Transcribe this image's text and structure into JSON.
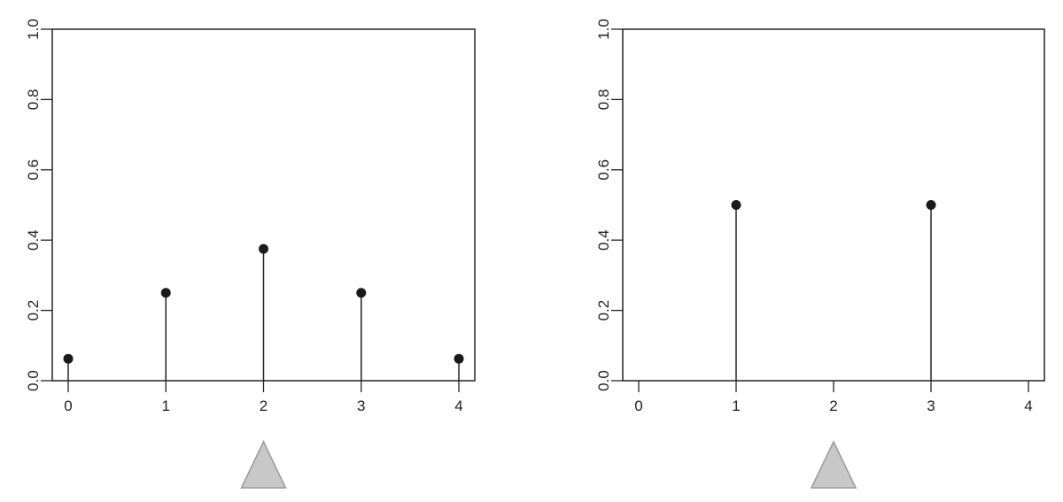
{
  "chart_data": [
    {
      "type": "stem",
      "x": [
        0,
        1,
        2,
        3,
        4
      ],
      "y": [
        0.0625,
        0.25,
        0.375,
        0.25,
        0.0625
      ],
      "xlim": [
        -0.15,
        4.15
      ],
      "ylim": [
        0,
        1
      ],
      "xticks": [
        "0",
        "1",
        "2",
        "3",
        "4"
      ],
      "yticks": [
        "0.0",
        "0.2",
        "0.4",
        "0.6",
        "0.8",
        "1.0"
      ],
      "marker_below_axis": {
        "shape": "triangle",
        "x": 2,
        "color": "#c8c8c8"
      },
      "grid": false
    },
    {
      "type": "stem",
      "x": [
        0,
        1,
        2,
        3,
        4
      ],
      "y": [
        0,
        0.5,
        0,
        0.5,
        0
      ],
      "xlim": [
        -0.15,
        4.15
      ],
      "ylim": [
        0,
        1
      ],
      "xticks": [
        "0",
        "1",
        "2",
        "3",
        "4"
      ],
      "yticks": [
        "0.0",
        "0.2",
        "0.4",
        "0.6",
        "0.8",
        "1.0"
      ],
      "marker_below_axis": {
        "shape": "triangle",
        "x": 2,
        "color": "#c8c8c8"
      },
      "grid": false
    }
  ]
}
